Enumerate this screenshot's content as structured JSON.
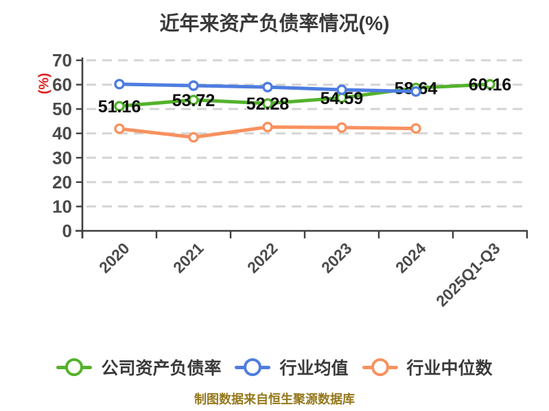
{
  "chart_data": {
    "type": "line",
    "title": "近年来资产负债率情况(%)",
    "y_axis_name": "(%)",
    "categories": [
      "2020",
      "2021",
      "2022",
      "2023",
      "2024",
      "2025Q1-Q3"
    ],
    "y_ticks": [
      0,
      10,
      20,
      30,
      40,
      50,
      60,
      70
    ],
    "ylim": [
      0,
      70
    ],
    "grid": "horizontal-dashed",
    "legend_position": "bottom",
    "x_label_rotation": 45,
    "series": [
      {
        "name": "公司资产负债率",
        "color": "#54b22c",
        "show_labels": true,
        "values": [
          51.16,
          53.72,
          52.28,
          54.59,
          58.64,
          60.16
        ]
      },
      {
        "name": "行业均值",
        "color": "#4e7de0",
        "show_labels": false,
        "values": [
          60.2,
          59.6,
          59.0,
          57.9,
          57.2,
          null
        ]
      },
      {
        "name": "行业中位数",
        "color": "#f8915f",
        "show_labels": false,
        "values": [
          41.9,
          38.4,
          42.6,
          42.4,
          42.0,
          null
        ]
      }
    ],
    "colors": {
      "axis": "#3f3f3f",
      "grid": "#d4d4d4",
      "tick_label": "#4a4a4a",
      "data_label": "#0c0c0c",
      "title": "#3a3a3a",
      "y_unit": "#e11d1d",
      "marker_fill": "#ffffff"
    }
  },
  "footer": {
    "text": "制图数据来自恒生聚源数据库",
    "color": "#95781c"
  }
}
